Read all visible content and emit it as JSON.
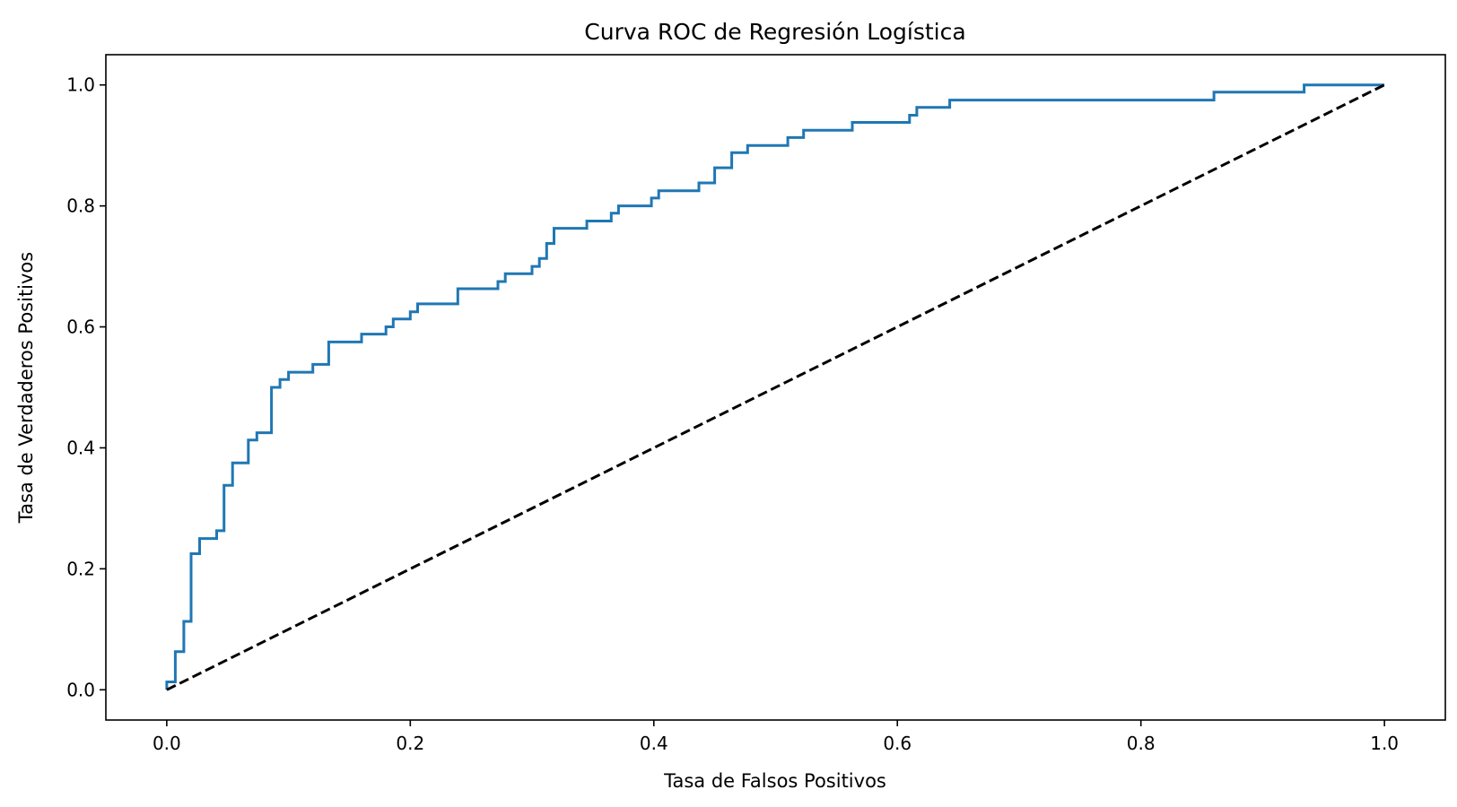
{
  "chart_data": {
    "type": "line",
    "title": "Curva ROC de Regresión Logística",
    "xlabel": "Tasa de Falsos Positivos",
    "ylabel": "Tasa de Verdaderos Positivos",
    "xlim": [
      -0.05,
      1.05
    ],
    "ylim": [
      -0.05,
      1.05
    ],
    "xticks": [
      "0.0",
      "0.2",
      "0.4",
      "0.6",
      "0.8",
      "1.0"
    ],
    "yticks": [
      "0.0",
      "0.2",
      "0.4",
      "0.6",
      "0.8",
      "1.0"
    ],
    "grid": false,
    "series": [
      {
        "color": "#1f77b4",
        "style": "solid",
        "step": true,
        "points": [
          [
            0.0,
            0.0
          ],
          [
            0.0,
            0.013
          ],
          [
            0.007,
            0.013
          ],
          [
            0.007,
            0.063
          ],
          [
            0.014,
            0.063
          ],
          [
            0.014,
            0.113
          ],
          [
            0.02,
            0.113
          ],
          [
            0.02,
            0.225
          ],
          [
            0.027,
            0.225
          ],
          [
            0.027,
            0.25
          ],
          [
            0.041,
            0.25
          ],
          [
            0.041,
            0.263
          ],
          [
            0.047,
            0.263
          ],
          [
            0.047,
            0.338
          ],
          [
            0.054,
            0.338
          ],
          [
            0.054,
            0.375
          ],
          [
            0.067,
            0.375
          ],
          [
            0.067,
            0.413
          ],
          [
            0.074,
            0.413
          ],
          [
            0.074,
            0.425
          ],
          [
            0.086,
            0.425
          ],
          [
            0.086,
            0.5
          ],
          [
            0.093,
            0.5
          ],
          [
            0.093,
            0.513
          ],
          [
            0.1,
            0.513
          ],
          [
            0.1,
            0.525
          ],
          [
            0.12,
            0.525
          ],
          [
            0.12,
            0.538
          ],
          [
            0.133,
            0.538
          ],
          [
            0.133,
            0.575
          ],
          [
            0.16,
            0.575
          ],
          [
            0.16,
            0.588
          ],
          [
            0.18,
            0.588
          ],
          [
            0.18,
            0.6
          ],
          [
            0.186,
            0.6
          ],
          [
            0.186,
            0.613
          ],
          [
            0.2,
            0.613
          ],
          [
            0.2,
            0.625
          ],
          [
            0.206,
            0.625
          ],
          [
            0.206,
            0.638
          ],
          [
            0.239,
            0.638
          ],
          [
            0.239,
            0.663
          ],
          [
            0.272,
            0.663
          ],
          [
            0.272,
            0.675
          ],
          [
            0.278,
            0.675
          ],
          [
            0.278,
            0.688
          ],
          [
            0.3,
            0.688
          ],
          [
            0.3,
            0.7
          ],
          [
            0.306,
            0.7
          ],
          [
            0.306,
            0.713
          ],
          [
            0.312,
            0.713
          ],
          [
            0.312,
            0.738
          ],
          [
            0.318,
            0.738
          ],
          [
            0.318,
            0.763
          ],
          [
            0.345,
            0.763
          ],
          [
            0.345,
            0.775
          ],
          [
            0.365,
            0.775
          ],
          [
            0.365,
            0.788
          ],
          [
            0.371,
            0.788
          ],
          [
            0.371,
            0.8
          ],
          [
            0.398,
            0.8
          ],
          [
            0.398,
            0.813
          ],
          [
            0.404,
            0.813
          ],
          [
            0.404,
            0.825
          ],
          [
            0.437,
            0.825
          ],
          [
            0.437,
            0.838
          ],
          [
            0.45,
            0.838
          ],
          [
            0.45,
            0.863
          ],
          [
            0.464,
            0.863
          ],
          [
            0.464,
            0.888
          ],
          [
            0.477,
            0.888
          ],
          [
            0.477,
            0.9
          ],
          [
            0.51,
            0.9
          ],
          [
            0.51,
            0.913
          ],
          [
            0.523,
            0.913
          ],
          [
            0.523,
            0.925
          ],
          [
            0.563,
            0.925
          ],
          [
            0.563,
            0.938
          ],
          [
            0.61,
            0.938
          ],
          [
            0.61,
            0.95
          ],
          [
            0.616,
            0.95
          ],
          [
            0.616,
            0.963
          ],
          [
            0.643,
            0.963
          ],
          [
            0.643,
            0.975
          ],
          [
            0.86,
            0.975
          ],
          [
            0.86,
            0.988
          ],
          [
            0.934,
            0.988
          ],
          [
            0.934,
            1.0
          ],
          [
            1.0,
            1.0
          ]
        ]
      },
      {
        "color": "#000000",
        "style": "dashed",
        "step": false,
        "points": [
          [
            0.0,
            0.0
          ],
          [
            1.0,
            1.0
          ]
        ]
      }
    ]
  }
}
